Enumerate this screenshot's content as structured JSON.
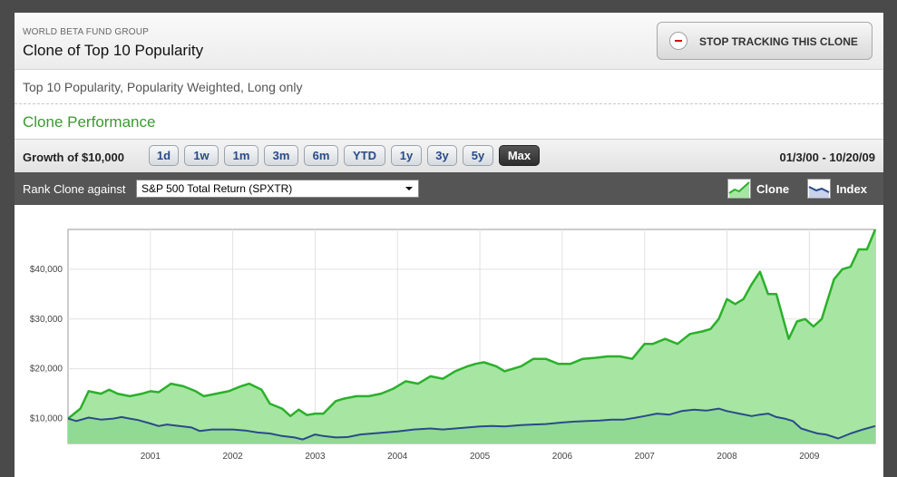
{
  "header": {
    "org": "WORLD BETA FUND GROUP",
    "title": "Clone of Top 10 Popularity",
    "stop_button": "STOP TRACKING THIS CLONE"
  },
  "description": "Top 10 Popularity, Popularity Weighted, Long only",
  "section_title": "Clone Performance",
  "range_bar": {
    "label": "Growth of $10,000",
    "buttons": [
      "1d",
      "1w",
      "1m",
      "3m",
      "6m",
      "YTD",
      "1y",
      "3y",
      "5y",
      "Max"
    ],
    "active": "Max",
    "date_range": "01/3/00 - 10/20/09"
  },
  "rank_bar": {
    "label": "Rank Clone against",
    "selected": "S&P 500 Total Return (SPXTR)",
    "legend": [
      "Clone",
      "Index"
    ]
  },
  "colors": {
    "clone_line": "#2bb02b",
    "clone_fill": "#a6e6a2",
    "index_line": "#2b4a8a"
  },
  "chart_data": {
    "type": "area",
    "x_ticks": [
      "2001",
      "2002",
      "2003",
      "2004",
      "2005",
      "2006",
      "2007",
      "2008",
      "2009"
    ],
    "y_ticks": [
      "$10,000",
      "$20,000",
      "$30,000",
      "$40,000"
    ],
    "xlim": [
      2000.0,
      2009.8
    ],
    "ylim": [
      5000,
      48000
    ],
    "grid": true,
    "series": [
      {
        "name": "Clone",
        "x": [
          2000.0,
          2000.15,
          2000.25,
          2000.4,
          2000.5,
          2000.6,
          2000.75,
          2000.9,
          2001.0,
          2001.1,
          2001.25,
          2001.4,
          2001.55,
          2001.65,
          2001.8,
          2001.95,
          2002.1,
          2002.2,
          2002.35,
          2002.45,
          2002.6,
          2002.7,
          2002.8,
          2002.9,
          2003.0,
          2003.1,
          2003.25,
          2003.35,
          2003.5,
          2003.65,
          2003.8,
          2003.95,
          2004.1,
          2004.25,
          2004.4,
          2004.55,
          2004.7,
          2004.85,
          2004.95,
          2005.05,
          2005.2,
          2005.3,
          2005.5,
          2005.65,
          2005.8,
          2005.95,
          2006.1,
          2006.25,
          2006.4,
          2006.55,
          2006.7,
          2006.85,
          2007.0,
          2007.1,
          2007.25,
          2007.4,
          2007.55,
          2007.7,
          2007.8,
          2007.9,
          2008.0,
          2008.1,
          2008.2,
          2008.3,
          2008.4,
          2008.5,
          2008.6,
          2008.75,
          2008.85,
          2008.95,
          2009.05,
          2009.15,
          2009.3,
          2009.4,
          2009.5,
          2009.6,
          2009.7,
          2009.8
        ],
        "values": [
          10000,
          12000,
          15500,
          15000,
          15800,
          15000,
          14500,
          15000,
          15500,
          15300,
          17000,
          16500,
          15500,
          14500,
          15000,
          15500,
          16500,
          17000,
          15800,
          13000,
          12000,
          10500,
          11800,
          10700,
          11000,
          11000,
          13500,
          14000,
          14500,
          14500,
          15000,
          16000,
          17500,
          17000,
          18500,
          18000,
          19500,
          20500,
          21000,
          21300,
          20500,
          19500,
          20500,
          22000,
          22000,
          21000,
          21000,
          22000,
          22200,
          22500,
          22500,
          22000,
          25000,
          25000,
          26000,
          25000,
          27000,
          27500,
          28000,
          30000,
          34000,
          33000,
          34000,
          37000,
          39500,
          35000,
          35000,
          26000,
          29500,
          30000,
          28500,
          30000,
          38000,
          40000,
          40500,
          44000,
          44000,
          48000
        ]
      },
      {
        "name": "Index",
        "x": [
          2000.0,
          2000.1,
          2000.25,
          2000.4,
          2000.55,
          2000.65,
          2000.75,
          2000.85,
          2001.0,
          2001.1,
          2001.2,
          2001.35,
          2001.5,
          2001.6,
          2001.75,
          2001.9,
          2002.0,
          2002.15,
          2002.3,
          2002.45,
          2002.6,
          2002.75,
          2002.85,
          2003.0,
          2003.1,
          2003.25,
          2003.4,
          2003.55,
          2003.7,
          2003.85,
          2004.0,
          2004.2,
          2004.4,
          2004.55,
          2004.7,
          2004.85,
          2005.0,
          2005.15,
          2005.3,
          2005.5,
          2005.65,
          2005.8,
          2006.0,
          2006.15,
          2006.3,
          2006.45,
          2006.6,
          2006.75,
          2006.9,
          2007.0,
          2007.15,
          2007.3,
          2007.45,
          2007.6,
          2007.75,
          2007.9,
          2008.0,
          2008.15,
          2008.3,
          2008.4,
          2008.5,
          2008.6,
          2008.7,
          2008.8,
          2008.9,
          2009.0,
          2009.1,
          2009.2,
          2009.35,
          2009.5,
          2009.65,
          2009.8
        ],
        "values": [
          10000,
          9500,
          10200,
          9800,
          10000,
          10300,
          10000,
          9700,
          9000,
          8500,
          8800,
          8500,
          8200,
          7500,
          7800,
          7800,
          7800,
          7600,
          7200,
          7000,
          6500,
          6200,
          5800,
          6800,
          6500,
          6200,
          6300,
          6800,
          7000,
          7200,
          7400,
          7800,
          8000,
          7800,
          8000,
          8200,
          8400,
          8500,
          8400,
          8700,
          8800,
          8900,
          9200,
          9400,
          9500,
          9600,
          9800,
          9800,
          10200,
          10500,
          11000,
          10800,
          11500,
          11800,
          11600,
          12000,
          11500,
          11000,
          10500,
          10800,
          11000,
          10300,
          10000,
          9500,
          8000,
          7500,
          7000,
          6800,
          6000,
          7000,
          7800,
          8500
        ]
      }
    ]
  }
}
